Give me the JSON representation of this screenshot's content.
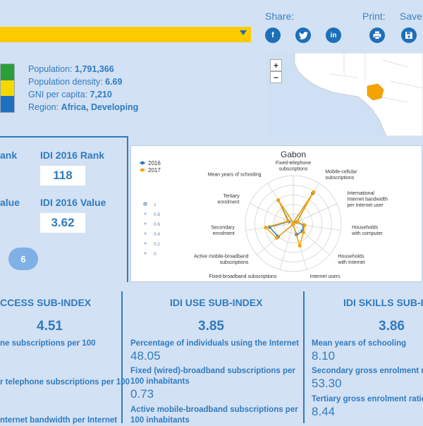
{
  "header": {
    "share_label": "Share:",
    "print_label": "Print:",
    "save_label": "Save:"
  },
  "country_info": {
    "population_label": "Population: ",
    "population_value": "1,791,366",
    "density_label": "Population density: ",
    "density_value": "6.69",
    "gni_label": "GNI per capita: ",
    "gni_value": "7,210",
    "region_label": "Region: ",
    "region_value": "Africa, Developing"
  },
  "flag_colors": [
    "#2e9e3a",
    "#f5d800",
    "#1f6fc0"
  ],
  "map": {
    "zoom_in": "+",
    "zoom_out": "−"
  },
  "rank_panel": {
    "rank_prev_partial": "ank",
    "rank_label": "IDI 2016 Rank",
    "rank_value": "118",
    "value_prev_partial": "alue",
    "value_label": "IDI 2016 Value",
    "value_value": "3.62",
    "pill": "6"
  },
  "chart_data": {
    "type": "radar",
    "title": "Gabon",
    "legend": [
      "2016",
      "2017"
    ],
    "colors": {
      "2016": "#2f7bbf",
      "2017": "#f5a300"
    },
    "radial_ticks": [
      "1",
      "0.8",
      "0.6",
      "0.4",
      "0.2",
      "0"
    ],
    "axes": [
      "Fixed-telephone subscriptions",
      "Mobile-cellular subscriptions",
      "International Internet bandwidth per Internet user",
      "Households with computer",
      "Households with Internet",
      "Internet users",
      "Fixed-broadband subscriptions",
      "Active mobile-broadband subscriptions",
      "Secondary enrolment",
      "Tertiary enrolment",
      "Mean years of schooling"
    ],
    "series": [
      {
        "name": "2016",
        "values": [
          0.02,
          0.75,
          0.08,
          0.22,
          0.25,
          0.24,
          0.02,
          0.42,
          0.5,
          0.1,
          0.58
        ]
      },
      {
        "name": "2017",
        "values": [
          0.02,
          0.78,
          0.09,
          0.24,
          0.28,
          0.48,
          0.02,
          0.46,
          0.58,
          0.12,
          0.58
        ]
      }
    ]
  },
  "subindices": {
    "access": {
      "title": "CCESS SUB-INDEX",
      "value": "4.51",
      "ind1": "ne subscriptions per 100",
      "ind2": "r telephone subscriptions per 100",
      "ind3": "nternet bandwidth per Internet"
    },
    "use": {
      "title": "IDI USE SUB-INDEX",
      "value": "3.85",
      "ind1_label": "Percentage of individuals using the Internet",
      "ind1_value": "48.05",
      "ind2_label": "Fixed (wired)-broadband subscriptions per 100 inhabitants",
      "ind2_value": "0.73",
      "ind3_label": "Active mobile-broadband subscriptions per 100 inhabitants"
    },
    "skills": {
      "title": "IDI SKILLS SUB-IN",
      "value": "3.86",
      "ind1_label": "Mean years of schooling",
      "ind1_value": "8.10",
      "ind2_label": "Secondary gross enrolment ratio",
      "ind2_value": "53.30",
      "ind3_label": "Tertiary gross enrolment ratio",
      "ind3_value": "8.44"
    }
  }
}
